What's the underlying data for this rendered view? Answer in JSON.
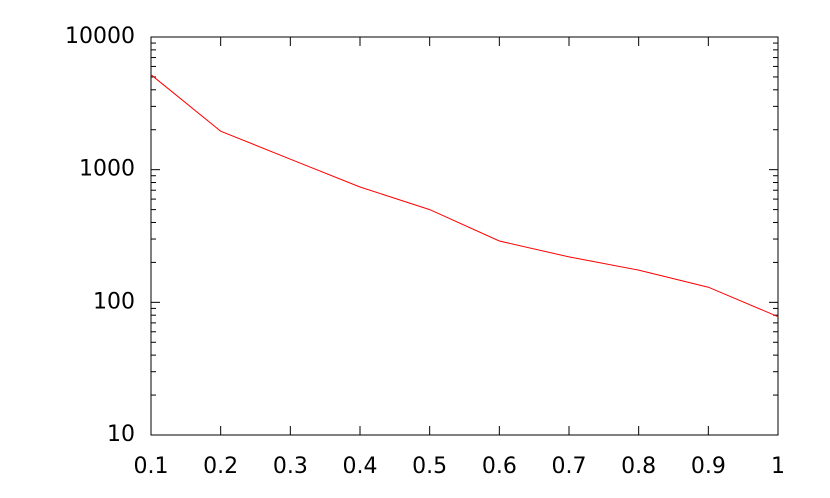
{
  "chart_data": {
    "type": "line",
    "log_y": true,
    "x": [
      0.1,
      0.2,
      0.3,
      0.4,
      0.5,
      0.6,
      0.7,
      0.8,
      0.9,
      1
    ],
    "series": [
      {
        "color": "#ff0000",
        "values": [
          5200,
          1950,
          1200,
          740,
          500,
          290,
          220,
          175,
          130,
          78
        ]
      }
    ],
    "xlim": [
      0.1,
      1
    ],
    "xticks": [
      0.1,
      0.2,
      0.3,
      0.4,
      0.5,
      0.6,
      0.7,
      0.8,
      0.9,
      1
    ],
    "ylim": [
      10,
      10000
    ],
    "yticks": [
      10,
      100,
      1000,
      10000
    ],
    "grid": false
  }
}
